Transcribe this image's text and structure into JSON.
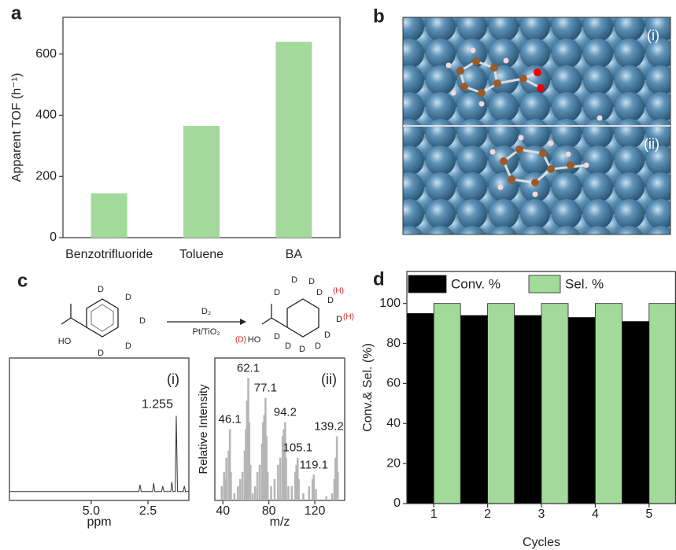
{
  "chart_data": [
    {
      "type": "bar",
      "label": "a",
      "categories": [
        "Benzotrifluoride",
        "Toluene",
        "BA"
      ],
      "values": [
        145,
        365,
        640
      ],
      "color": "#a3d99b",
      "ylabel": "Apparent TOF (h⁻¹)",
      "ylim": [
        0,
        720
      ],
      "yticks": [
        0,
        200,
        400,
        600
      ]
    },
    {
      "type": "line",
      "panel": "(i)",
      "xlabel": "ppm",
      "color": "#333333",
      "x": [
        8.6,
        3.0,
        2.9,
        2.85,
        2.8,
        2.3,
        2.25,
        2.2,
        1.9,
        1.85,
        1.8,
        1.6,
        1.5,
        1.45,
        1.4,
        1.3,
        1.255,
        1.2,
        0.95,
        0.9,
        0.85,
        0.7
      ],
      "values": [
        0.03,
        0.03,
        0.03,
        0.08,
        0.03,
        0.03,
        0.09,
        0.03,
        0.03,
        0.07,
        0.03,
        0.03,
        0.03,
        0.1,
        0.03,
        0.03,
        0.58,
        0.03,
        0.03,
        0.07,
        0.03,
        0.03
      ],
      "xlim": [
        8.6,
        0.7
      ],
      "ylim": [
        0,
        1
      ],
      "xticks": [
        {
          "value": 5,
          "label": "5.0"
        },
        2.5
      ],
      "peaks": [
        1.255
      ]
    },
    {
      "type": "sticks",
      "panel": "(ii)",
      "xlabel": "m/z",
      "ylabel": "Relative Intensity",
      "color": "#b5b5b5",
      "x": [
        39,
        41,
        42,
        43,
        45,
        46.1,
        47,
        50,
        53,
        55,
        57,
        59,
        60,
        61,
        62.1,
        63,
        64,
        66,
        68,
        70,
        72,
        74,
        75,
        76,
        77.1,
        78,
        79,
        82,
        85,
        88,
        90,
        92,
        93,
        94.2,
        95,
        97,
        100,
        103,
        104,
        105.1,
        106,
        110,
        115,
        118,
        119.1,
        121,
        130,
        135,
        137,
        138,
        139.2,
        140
      ],
      "values": [
        0.1,
        0.2,
        0.15,
        0.3,
        0.35,
        0.5,
        0.2,
        0.05,
        0.1,
        0.15,
        0.2,
        0.35,
        0.5,
        0.7,
        0.86,
        0.55,
        0.25,
        0.05,
        0.1,
        0.2,
        0.25,
        0.4,
        0.55,
        0.6,
        0.72,
        0.45,
        0.2,
        0.1,
        0.15,
        0.25,
        0.3,
        0.45,
        0.5,
        0.55,
        0.3,
        0.1,
        0.1,
        0.2,
        0.25,
        0.3,
        0.15,
        0.05,
        0.1,
        0.15,
        0.18,
        0.08,
        0.03,
        0.05,
        0.15,
        0.3,
        0.45,
        0.2
      ],
      "xlim": [
        33,
        146
      ],
      "ylim": [
        0,
        1
      ],
      "xticks": [
        40,
        80,
        120
      ],
      "peaks": [
        46.1,
        62.1,
        77.1,
        94.2,
        105.1,
        119.1,
        139.2
      ]
    },
    {
      "type": "grouped-bar",
      "label": "d",
      "categories": [
        "1",
        "2",
        "3",
        "4",
        "5"
      ],
      "xlabel": "Cycles",
      "ylabel": "Conv.& Sel. (%)",
      "series": [
        {
          "name": "Conv. %",
          "color": "#000000",
          "values": [
            95,
            94,
            94,
            93,
            91
          ]
        },
        {
          "name": "Sel. %",
          "color": "#a3d99b",
          "values": [
            100,
            100,
            100,
            100,
            100
          ]
        }
      ],
      "ylim": [
        0,
        116
      ],
      "yticks": [
        0,
        20,
        40,
        60,
        80,
        100
      ]
    }
  ],
  "structure": {
    "label": "b",
    "views": [
      "(i)",
      "(ii)"
    ]
  },
  "scheme": {
    "label": "c",
    "reagent": "D₂",
    "catalyst": "Pt/TiO₂",
    "reactant_labels": [
      "D",
      "D",
      "D",
      "D",
      "D",
      "HO"
    ],
    "product_labels": [
      "D",
      "D",
      "D",
      "D",
      "D",
      "D",
      "D",
      "D",
      "D",
      "D",
      "D",
      "HO"
    ],
    "exchanged": [
      "(H)",
      "(H)",
      "(D)"
    ]
  }
}
